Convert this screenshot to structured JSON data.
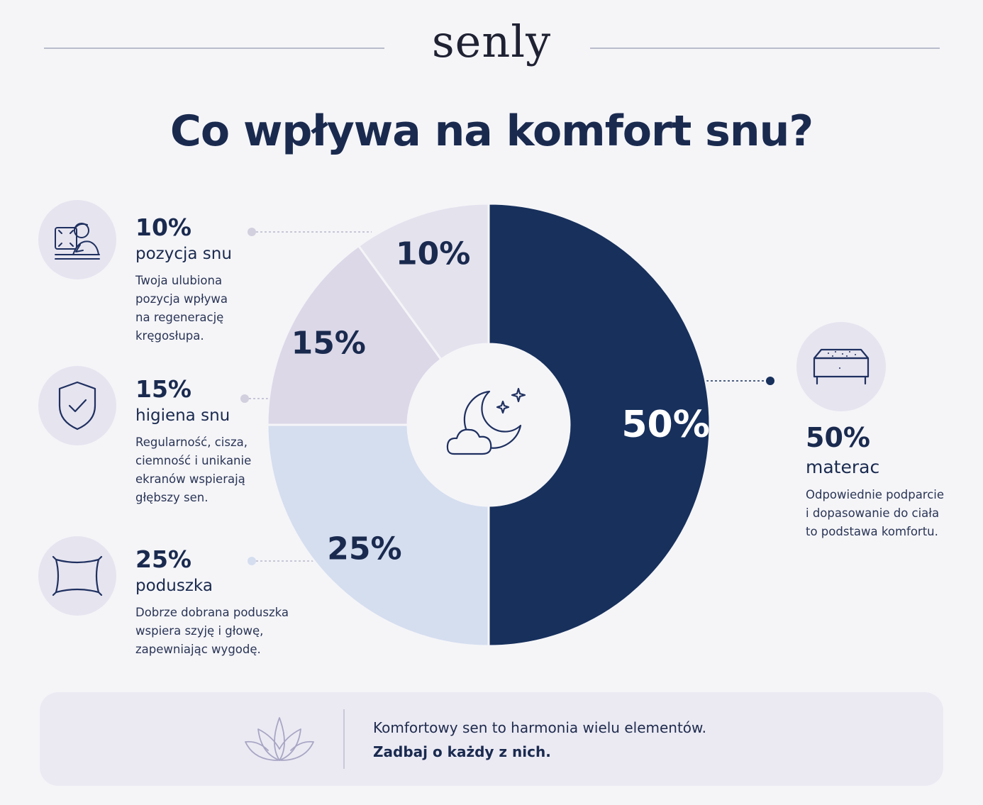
{
  "brand": {
    "logo_text": "senly"
  },
  "title": "Co wpływa na komfort snu?",
  "chart_data": {
    "type": "pie",
    "style": "donut",
    "slices": [
      {
        "label": "materac",
        "value": 50,
        "display": "50%",
        "color": "#17305c",
        "text_color": "#ffffff"
      },
      {
        "label": "poduszka",
        "value": 25,
        "display": "25%",
        "color": "#d5deef",
        "text_color": "#1a2a4f"
      },
      {
        "label": "higiena snu",
        "value": 15,
        "display": "15%",
        "color": "#dcd8e8",
        "text_color": "#1a2a4f"
      },
      {
        "label": "pozycja snu",
        "value": 10,
        "display": "10%",
        "color": "#e4e2ed",
        "text_color": "#1a2a4f"
      }
    ],
    "center_icon": "moon-cloud-stars-icon"
  },
  "factors": {
    "pozycja": {
      "pct": "10%",
      "name": "pozycja snu",
      "desc": [
        "Twoja ulubiona",
        "pozycja wpływa",
        "na regenerację",
        "kręgosłupa."
      ],
      "icon": "sleeping-person-icon"
    },
    "higiena": {
      "pct": "15%",
      "name": "higiena snu",
      "desc": [
        "Regularność, cisza,",
        "ciemność i unikanie",
        "ekranów wspierają",
        "głębszy sen."
      ],
      "icon": "shield-check-icon"
    },
    "poduszka": {
      "pct": "25%",
      "name": "poduszka",
      "desc": [
        "Dobrze dobrana poduszka",
        "wspiera szyję i głowę,",
        "zapewniając wygodę."
      ],
      "icon": "pillow-icon"
    },
    "materac": {
      "pct": "50%",
      "name": "materac",
      "desc": [
        "Odpowiednie podparcie",
        "i dopasowanie do ciała",
        "to podstawa komfortu."
      ],
      "icon": "mattress-icon"
    }
  },
  "footer": {
    "line1": "Komfortowy sen to harmonia wielu elementów.",
    "line2": "Zadbaj o każdy z nich.",
    "icon": "lotus-icon"
  }
}
